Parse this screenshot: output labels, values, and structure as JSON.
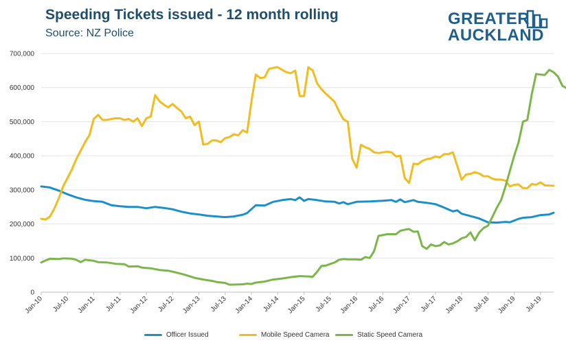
{
  "chart_data": {
    "type": "line",
    "title": "Speeding Tickets issued - 12 month rolling",
    "subtitle": "Source: NZ Police",
    "logo_text": [
      "GREATER",
      "AUCKLAND"
    ],
    "xlabel": "",
    "ylabel": "",
    "ylim": [
      0,
      700000
    ],
    "yticks": [
      0,
      100000,
      200000,
      300000,
      400000,
      500000,
      600000,
      700000
    ],
    "ytick_labels": [
      "0",
      "100,000",
      "200,000",
      "300,000",
      "400,000",
      "500,000",
      "600,000",
      "700,000"
    ],
    "x_month_range": [
      0,
      117
    ],
    "xticks": [
      0,
      6,
      12,
      18,
      24,
      30,
      36,
      42,
      48,
      54,
      60,
      66,
      72,
      78,
      84,
      90,
      96,
      102,
      108,
      114
    ],
    "xtick_labels": [
      "Jan-10",
      "Jul-10",
      "Jan-11",
      "Jul-11",
      "Jan-12",
      "Jul-12",
      "Jan-13",
      "Jul-13",
      "Jan-14",
      "Jul-14",
      "Jan-15",
      "Jul-15",
      "Jan-16",
      "Jul-16",
      "Jan-17",
      "Jul-17",
      "Jan-18",
      "Jul-18",
      "Jan-19",
      "Jul-19"
    ],
    "grid": true,
    "legend_position": "bottom",
    "series": [
      {
        "name": "Officer Issued",
        "color": "#1a8fc9",
        "points": [
          [
            0,
            310000
          ],
          [
            2,
            307000
          ],
          [
            4,
            298000
          ],
          [
            6,
            287000
          ],
          [
            8,
            278000
          ],
          [
            10,
            271000
          ],
          [
            12,
            267000
          ],
          [
            14,
            265000
          ],
          [
            16,
            255000
          ],
          [
            18,
            252000
          ],
          [
            20,
            250000
          ],
          [
            22,
            250000
          ],
          [
            24,
            246000
          ],
          [
            26,
            250000
          ],
          [
            28,
            247000
          ],
          [
            30,
            243000
          ],
          [
            32,
            236000
          ],
          [
            34,
            231000
          ],
          [
            36,
            228000
          ],
          [
            38,
            224000
          ],
          [
            40,
            222000
          ],
          [
            42,
            220000
          ],
          [
            44,
            222000
          ],
          [
            46,
            227000
          ],
          [
            47,
            232000
          ],
          [
            49,
            255000
          ],
          [
            51,
            254000
          ],
          [
            53,
            265000
          ],
          [
            55,
            270000
          ],
          [
            57,
            273000
          ],
          [
            58,
            270000
          ],
          [
            59,
            278000
          ],
          [
            60,
            268000
          ],
          [
            61,
            273000
          ],
          [
            63,
            270000
          ],
          [
            65,
            266000
          ],
          [
            67,
            265000
          ],
          [
            68,
            260000
          ],
          [
            69,
            264000
          ],
          [
            70,
            258000
          ],
          [
            72,
            265000
          ],
          [
            75,
            266000
          ],
          [
            78,
            268000
          ],
          [
            80,
            270000
          ],
          [
            81,
            265000
          ],
          [
            82,
            272000
          ],
          [
            83,
            264000
          ],
          [
            85,
            270000
          ],
          [
            86,
            265000
          ],
          [
            88,
            262000
          ],
          [
            90,
            258000
          ],
          [
            92,
            248000
          ],
          [
            94,
            237000
          ],
          [
            95,
            240000
          ],
          [
            96,
            230000
          ],
          [
            98,
            223000
          ],
          [
            100,
            216000
          ],
          [
            102,
            205000
          ],
          [
            104,
            204000
          ],
          [
            106,
            206000
          ],
          [
            107,
            205000
          ],
          [
            108,
            210000
          ],
          [
            109,
            215000
          ],
          [
            110,
            218000
          ],
          [
            112,
            220000
          ],
          [
            114,
            226000
          ],
          [
            116,
            228000
          ],
          [
            117,
            233000
          ]
        ]
      },
      {
        "name": "Mobile Speed Camera",
        "color": "#f2bc1f",
        "points": [
          [
            0,
            215000
          ],
          [
            1,
            213000
          ],
          [
            2,
            222000
          ],
          [
            3,
            245000
          ],
          [
            4,
            275000
          ],
          [
            5,
            310000
          ],
          [
            6,
            335000
          ],
          [
            7,
            360000
          ],
          [
            8,
            390000
          ],
          [
            9,
            415000
          ],
          [
            10,
            440000
          ],
          [
            11,
            460000
          ],
          [
            12,
            508000
          ],
          [
            13,
            520000
          ],
          [
            14,
            505000
          ],
          [
            15,
            505000
          ],
          [
            16,
            508000
          ],
          [
            17,
            510000
          ],
          [
            18,
            510000
          ],
          [
            19,
            505000
          ],
          [
            20,
            508000
          ],
          [
            21,
            500000
          ],
          [
            22,
            510000
          ],
          [
            23,
            487000
          ],
          [
            24,
            510000
          ],
          [
            25,
            515000
          ],
          [
            26,
            578000
          ],
          [
            27,
            560000
          ],
          [
            28,
            550000
          ],
          [
            29,
            542000
          ],
          [
            30,
            552000
          ],
          [
            31,
            540000
          ],
          [
            32,
            530000
          ],
          [
            33,
            510000
          ],
          [
            34,
            515000
          ],
          [
            35,
            490000
          ],
          [
            36,
            500000
          ],
          [
            37,
            433000
          ],
          [
            38,
            435000
          ],
          [
            39,
            445000
          ],
          [
            40,
            445000
          ],
          [
            41,
            440000
          ],
          [
            42,
            452000
          ],
          [
            43,
            455000
          ],
          [
            44,
            463000
          ],
          [
            45,
            460000
          ],
          [
            46,
            475000
          ],
          [
            47,
            468000
          ],
          [
            48,
            560000
          ],
          [
            49,
            638000
          ],
          [
            50,
            628000
          ],
          [
            51,
            630000
          ],
          [
            52,
            655000
          ],
          [
            53,
            658000
          ],
          [
            54,
            660000
          ],
          [
            55,
            652000
          ],
          [
            56,
            645000
          ],
          [
            57,
            642000
          ],
          [
            58,
            650000
          ],
          [
            59,
            575000
          ],
          [
            60,
            575000
          ],
          [
            61,
            660000
          ],
          [
            62,
            650000
          ],
          [
            63,
            612000
          ],
          [
            64,
            595000
          ],
          [
            65,
            582000
          ],
          [
            66,
            570000
          ],
          [
            67,
            558000
          ],
          [
            68,
            530000
          ],
          [
            69,
            507000
          ],
          [
            70,
            500000
          ],
          [
            71,
            392000
          ],
          [
            72,
            365000
          ],
          [
            73,
            432000
          ],
          [
            74,
            425000
          ],
          [
            75,
            420000
          ],
          [
            76,
            410000
          ],
          [
            77,
            408000
          ],
          [
            78,
            410000
          ],
          [
            79,
            412000
          ],
          [
            80,
            410000
          ],
          [
            81,
            398000
          ],
          [
            82,
            400000
          ],
          [
            83,
            335000
          ],
          [
            84,
            320000
          ],
          [
            85,
            377000
          ],
          [
            86,
            375000
          ],
          [
            87,
            385000
          ],
          [
            88,
            390000
          ],
          [
            89,
            392000
          ],
          [
            90,
            398000
          ],
          [
            91,
            395000
          ],
          [
            92,
            405000
          ],
          [
            93,
            405000
          ],
          [
            94,
            410000
          ],
          [
            95,
            370000
          ],
          [
            96,
            330000
          ],
          [
            97,
            345000
          ],
          [
            98,
            347000
          ],
          [
            99,
            352000
          ],
          [
            100,
            348000
          ],
          [
            101,
            340000
          ],
          [
            102,
            340000
          ],
          [
            103,
            333000
          ],
          [
            104,
            330000
          ],
          [
            105,
            330000
          ],
          [
            106,
            327000
          ],
          [
            107,
            310000
          ],
          [
            108,
            315000
          ],
          [
            109,
            316000
          ],
          [
            110,
            305000
          ],
          [
            111,
            305000
          ],
          [
            112,
            317000
          ],
          [
            113,
            315000
          ],
          [
            114,
            322000
          ],
          [
            115,
            313000
          ],
          [
            117,
            312000
          ]
        ]
      },
      {
        "name": "Static Speed Camera",
        "color": "#7ab648",
        "points": [
          [
            0,
            87000
          ],
          [
            1,
            93000
          ],
          [
            2,
            98000
          ],
          [
            4,
            97000
          ],
          [
            5,
            99000
          ],
          [
            7,
            98000
          ],
          [
            8,
            95000
          ],
          [
            9,
            88000
          ],
          [
            10,
            95000
          ],
          [
            12,
            92000
          ],
          [
            13,
            88000
          ],
          [
            15,
            87000
          ],
          [
            17,
            83000
          ],
          [
            19,
            82000
          ],
          [
            20,
            75000
          ],
          [
            22,
            76000
          ],
          [
            23,
            72000
          ],
          [
            25,
            70000
          ],
          [
            27,
            65000
          ],
          [
            29,
            63000
          ],
          [
            31,
            57000
          ],
          [
            33,
            50000
          ],
          [
            35,
            42000
          ],
          [
            37,
            37000
          ],
          [
            39,
            33000
          ],
          [
            40,
            30000
          ],
          [
            42,
            27000
          ],
          [
            43,
            22000
          ],
          [
            46,
            23000
          ],
          [
            47,
            25000
          ],
          [
            48,
            24000
          ],
          [
            49,
            28000
          ],
          [
            51,
            31000
          ],
          [
            53,
            37000
          ],
          [
            55,
            40000
          ],
          [
            57,
            44000
          ],
          [
            59,
            47000
          ],
          [
            61,
            46000
          ],
          [
            62,
            45000
          ],
          [
            63,
            60000
          ],
          [
            64,
            77000
          ],
          [
            65,
            78000
          ],
          [
            67,
            87000
          ],
          [
            68,
            95000
          ],
          [
            69,
            97000
          ],
          [
            70,
            96000
          ],
          [
            72,
            96000
          ],
          [
            73,
            95000
          ],
          [
            74,
            103000
          ],
          [
            75,
            100000
          ],
          [
            76,
            120000
          ],
          [
            77,
            165000
          ],
          [
            79,
            170000
          ],
          [
            81,
            170000
          ],
          [
            82,
            180000
          ],
          [
            83,
            183000
          ],
          [
            84,
            185000
          ],
          [
            85,
            177000
          ],
          [
            86,
            178000
          ],
          [
            87,
            135000
          ],
          [
            88,
            127000
          ],
          [
            89,
            140000
          ],
          [
            90,
            135000
          ],
          [
            91,
            137000
          ],
          [
            92,
            147000
          ],
          [
            93,
            140000
          ],
          [
            94,
            143000
          ],
          [
            95,
            149000
          ],
          [
            96,
            158000
          ],
          [
            97,
            162000
          ],
          [
            98,
            175000
          ],
          [
            99,
            152000
          ],
          [
            100,
            175000
          ],
          [
            101,
            188000
          ],
          [
            102,
            195000
          ],
          [
            103,
            220000
          ],
          [
            104,
            247000
          ],
          [
            105,
            270000
          ],
          [
            106,
            310000
          ],
          [
            107,
            355000
          ],
          [
            108,
            400000
          ],
          [
            109,
            440000
          ],
          [
            110,
            500000
          ],
          [
            111,
            505000
          ],
          [
            112,
            580000
          ],
          [
            113,
            640000
          ],
          [
            114,
            638000
          ],
          [
            115,
            637000
          ],
          [
            116,
            652000
          ],
          [
            117,
            645000
          ],
          [
            118,
            632000
          ],
          [
            119,
            605000
          ],
          [
            120,
            598000
          ]
        ]
      }
    ]
  }
}
